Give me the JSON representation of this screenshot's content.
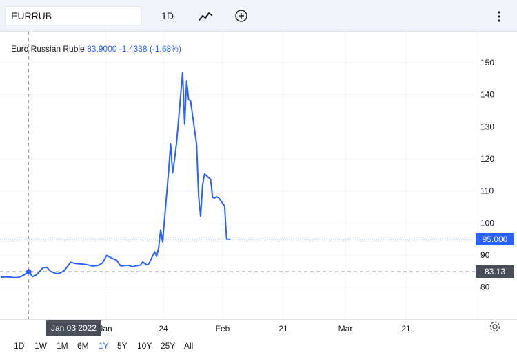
{
  "toolbar": {
    "symbol": "EURRUB",
    "interval": "1D",
    "chart_type_icon": "line-chart-icon",
    "compare_icon": "plus-circle-icon",
    "menu_icon": "more-vertical-icon"
  },
  "legend": {
    "name": "Euro Russian Ruble",
    "price": "83.9000",
    "change": "-1.4338",
    "change_pct": "(-1.68%)"
  },
  "price_tags": {
    "current": "95.000",
    "crosshair": "83.13"
  },
  "crosshair_date": "Jan 03 2022",
  "ranges": [
    "1D",
    "1W",
    "1M",
    "6M",
    "1Y",
    "5Y",
    "10Y",
    "25Y",
    "All"
  ],
  "active_range": "1Y",
  "colors": {
    "line": "#2962ff",
    "toolbar_bg": "#f0f3fa",
    "crosshair_tag": "#4a4e59",
    "crosshair_price_tag": "#4a4e59"
  },
  "chart_data": {
    "type": "line",
    "title": "Euro Russian Ruble",
    "y_ticks": [
      80,
      90,
      100,
      110,
      120,
      130,
      140,
      150
    ],
    "x_ticks": [
      "Jan",
      "24",
      "Feb",
      "21",
      "Mar",
      "21"
    ],
    "ylim": [
      75,
      160
    ],
    "grid": true,
    "series": [
      {
        "name": "EURRUB",
        "x": [
          "2021-12-20",
          "2021-12-22",
          "2021-12-24",
          "2021-12-27",
          "2021-12-29",
          "2021-12-31",
          "2022-01-03",
          "2022-01-05",
          "2022-01-07",
          "2022-01-10",
          "2022-01-12",
          "2022-01-14",
          "2022-01-17",
          "2022-01-19",
          "2022-01-21",
          "2022-01-24",
          "2022-01-26",
          "2022-01-28",
          "2022-01-31",
          "2022-02-02",
          "2022-02-04",
          "2022-02-07",
          "2022-02-09",
          "2022-02-11",
          "2022-02-14",
          "2022-02-16",
          "2022-02-18",
          "2022-02-21",
          "2022-02-22",
          "2022-02-23",
          "2022-02-24",
          "2022-02-25",
          "2022-02-28",
          "2022-03-01",
          "2022-03-02",
          "2022-03-03",
          "2022-03-04",
          "2022-03-07",
          "2022-03-08",
          "2022-03-09",
          "2022-03-10",
          "2022-03-11",
          "2022-03-14",
          "2022-03-15",
          "2022-03-16",
          "2022-03-17",
          "2022-03-18",
          "2022-03-21",
          "2022-03-22",
          "2022-03-23",
          "2022-03-24",
          "2022-03-25",
          "2022-03-28",
          "2022-03-29",
          "2022-03-30",
          "2022-03-31",
          "2022-04-01",
          "2022-04-04",
          "2022-04-05",
          "2022-04-06",
          "2022-04-07",
          "2022-04-08",
          "2022-04-11",
          "2022-04-12",
          "2022-04-13",
          "2022-04-14"
        ],
        "y": [
          83.1,
          83.2,
          83.2,
          83.0,
          83.1,
          83.6,
          84.8,
          83.3,
          83.9,
          86.0,
          86.2,
          84.9,
          84.2,
          84.5,
          85.3,
          87.8,
          87.4,
          87.3,
          87.1,
          86.9,
          86.6,
          86.8,
          87.6,
          89.9,
          88.9,
          88.4,
          86.6,
          86.8,
          86.8,
          86.6,
          86.3,
          86.6,
          86.9,
          87.9,
          87.4,
          87.0,
          87.2,
          91.0,
          89.6,
          92.2,
          97.9,
          94.1,
          116.2,
          124.7,
          115.6,
          120.0,
          125.1,
          147.0,
          130.8,
          144.2,
          138.5,
          138.0,
          124.5,
          108.4,
          102.1,
          112.0,
          115.3,
          113.6,
          108.0,
          107.8,
          108.2,
          107.9,
          105.3,
          95.0,
          95.0,
          95.0
        ]
      }
    ]
  }
}
